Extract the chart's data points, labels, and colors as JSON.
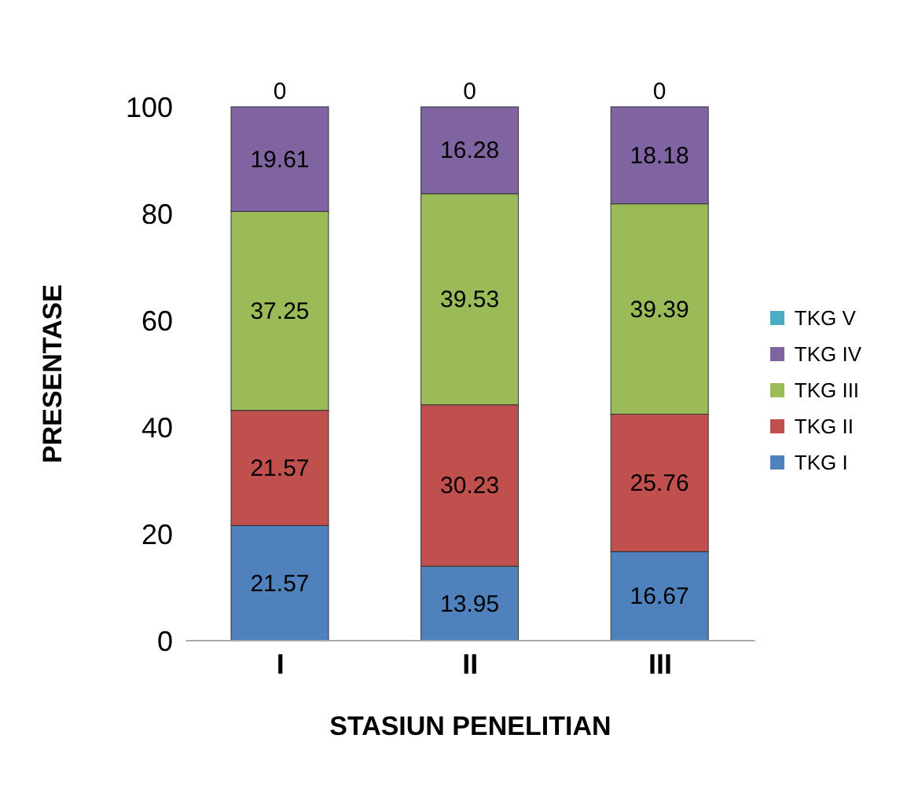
{
  "chart_data": {
    "type": "bar",
    "stacked": true,
    "xlabel": "STASIUN PENELITIAN",
    "ylabel": "PRESENTASE",
    "categories": [
      "I",
      "II",
      "III"
    ],
    "series": [
      {
        "name": "TKG I",
        "color": "#4f81bd",
        "values": [
          21.57,
          13.95,
          16.67
        ]
      },
      {
        "name": "TKG II",
        "color": "#c0504d",
        "values": [
          21.57,
          30.23,
          25.76
        ]
      },
      {
        "name": "TKG III",
        "color": "#9bbb59",
        "values": [
          37.25,
          39.53,
          39.39
        ]
      },
      {
        "name": "TKG IV",
        "color": "#8064a2",
        "values": [
          19.61,
          16.28,
          18.18
        ]
      },
      {
        "name": "TKG V",
        "color": "#4bacc6",
        "values": [
          0,
          0,
          0
        ]
      }
    ],
    "ylim": [
      0,
      100
    ],
    "yticks": [
      0,
      20,
      40,
      60,
      80,
      100
    ],
    "grid": false,
    "legend": "right",
    "data_labels": true
  }
}
